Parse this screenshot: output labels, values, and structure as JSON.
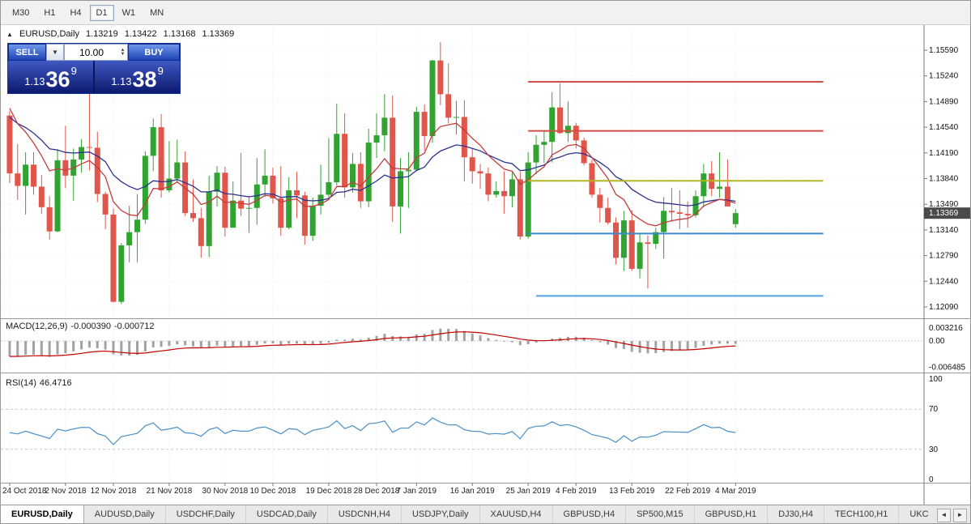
{
  "toolbar": {
    "timeframes": [
      {
        "label": "M30",
        "active": false
      },
      {
        "label": "H1",
        "active": false
      },
      {
        "label": "H4",
        "active": false
      },
      {
        "label": "D1",
        "active": true
      },
      {
        "label": "W1",
        "active": false
      },
      {
        "label": "MN",
        "active": false
      }
    ]
  },
  "icons": {
    "collapse": "▲",
    "dropdown": "▼",
    "spin_up": "▲",
    "spin_down": "▼",
    "tab_left": "◄",
    "tab_right": "►"
  },
  "chart_header": {
    "symbol": "EURUSD,Daily",
    "open": "1.13219",
    "high": "1.13422",
    "low": "1.13168",
    "close": "1.13369"
  },
  "trade_widget": {
    "sell_label": "SELL",
    "buy_label": "BUY",
    "volume": "10.00",
    "sell_price_prefix": "1.13",
    "sell_price_pips": "36",
    "sell_price_sup": "9",
    "buy_price_prefix": "1.13",
    "buy_price_pips": "38",
    "buy_price_sup": "9"
  },
  "chart_data": {
    "type": "candlestick",
    "symbol": "EURUSD",
    "timeframe": "Daily",
    "colors": {
      "bull": "#31a331",
      "bear": "#e0564a",
      "grid": "#ededed",
      "macd_hist": "#a3a3a3",
      "macd_signal": "#c40000",
      "rsi_line": "#4a8fc7",
      "axis_line": "#777777",
      "divider": "#9a9a9a",
      "price_tag_bg": "#4a4a4a"
    },
    "price_axis": {
      "labels": [
        "1.15590",
        "1.15240",
        "1.14890",
        "1.14540",
        "1.14190",
        "1.13840",
        "1.13490",
        "1.13140",
        "1.12790",
        "1.12440",
        "1.12090"
      ],
      "current_price": "1.13369"
    },
    "x_labels": [
      {
        "index": 0,
        "label": "24 Oct 2018"
      },
      {
        "index": 7,
        "label": "2 Nov 2018"
      },
      {
        "index": 13,
        "label": "12 Nov 2018"
      },
      {
        "index": 20,
        "label": "21 Nov 2018"
      },
      {
        "index": 27,
        "label": "30 Nov 2018"
      },
      {
        "index": 33,
        "label": "10 Dec 2018"
      },
      {
        "index": 40,
        "label": "19 Dec 2018"
      },
      {
        "index": 46,
        "label": "28 Dec 2018"
      },
      {
        "index": 51,
        "label": "7 Jan 2019"
      },
      {
        "index": 58,
        "label": "16 Jan 2019"
      },
      {
        "index": 65,
        "label": "25 Jan 2019"
      },
      {
        "index": 71,
        "label": "4 Feb 2019"
      },
      {
        "index": 78,
        "label": "13 Feb 2019"
      },
      {
        "index": 85,
        "label": "22 Feb 2019"
      },
      {
        "index": 91,
        "label": "4 Mar 2019"
      }
    ],
    "candles": [
      [
        "24 Oct 2018",
        1.147,
        1.1476,
        1.1378,
        1.1391
      ],
      [
        "25 Oct 2018",
        1.1391,
        1.1431,
        1.1355,
        1.1374
      ],
      [
        "26 Oct 2018",
        1.1374,
        1.142,
        1.1335,
        1.1403
      ],
      [
        "29 Oct 2018",
        1.1403,
        1.142,
        1.1362,
        1.1373
      ],
      [
        "30 Oct 2018",
        1.1373,
        1.1389,
        1.1336,
        1.1345
      ],
      [
        "31 Oct 2018",
        1.1345,
        1.136,
        1.1301,
        1.1312
      ],
      [
        "1 Nov 2018",
        1.1312,
        1.1424,
        1.1311,
        1.1409
      ],
      [
        "2 Nov 2018",
        1.1409,
        1.1456,
        1.1371,
        1.1388
      ],
      [
        "5 Nov 2018",
        1.1388,
        1.1425,
        1.1354,
        1.141
      ],
      [
        "6 Nov 2018",
        1.141,
        1.1438,
        1.1392,
        1.1427
      ],
      [
        "7 Nov 2018",
        1.1427,
        1.15,
        1.1395,
        1.1426
      ],
      [
        "8 Nov 2018",
        1.1426,
        1.1448,
        1.1352,
        1.1363
      ],
      [
        "9 Nov 2018",
        1.1363,
        1.1366,
        1.1315,
        1.1335
      ],
      [
        "12 Nov 2018",
        1.1335,
        1.1343,
        1.1215,
        1.1216
      ],
      [
        "13 Nov 2018",
        1.1216,
        1.1296,
        1.1213,
        1.1293
      ],
      [
        "14 Nov 2018",
        1.1293,
        1.1347,
        1.127,
        1.1311
      ],
      [
        "15 Nov 2018",
        1.1311,
        1.1363,
        1.127,
        1.1328
      ],
      [
        "16 Nov 2018",
        1.1328,
        1.1421,
        1.1322,
        1.1415
      ],
      [
        "19 Nov 2018",
        1.1415,
        1.1466,
        1.1394,
        1.1454
      ],
      [
        "20 Nov 2018",
        1.1454,
        1.1472,
        1.1358,
        1.1368
      ],
      [
        "21 Nov 2018",
        1.1368,
        1.1435,
        1.1365,
        1.1384
      ],
      [
        "22 Nov 2018",
        1.1384,
        1.1437,
        1.1378,
        1.1406
      ],
      [
        "23 Nov 2018",
        1.1406,
        1.1421,
        1.1333,
        1.1337
      ],
      [
        "26 Nov 2018",
        1.1337,
        1.1383,
        1.1325,
        1.133
      ],
      [
        "27 Nov 2018",
        1.133,
        1.1344,
        1.1276,
        1.1292
      ],
      [
        "28 Nov 2018",
        1.1292,
        1.1388,
        1.1277,
        1.1366
      ],
      [
        "29 Nov 2018",
        1.1366,
        1.1401,
        1.1346,
        1.1392
      ],
      [
        "30 Nov 2018",
        1.1392,
        1.14,
        1.1305,
        1.1317
      ],
      [
        "3 Dec 2018",
        1.1317,
        1.138,
        1.1317,
        1.1354
      ],
      [
        "4 Dec 2018",
        1.1354,
        1.1419,
        1.1333,
        1.1343
      ],
      [
        "5 Dec 2018",
        1.1343,
        1.136,
        1.131,
        1.1344
      ],
      [
        "6 Dec 2018",
        1.1344,
        1.1412,
        1.1321,
        1.1376
      ],
      [
        "7 Dec 2018",
        1.1376,
        1.1424,
        1.1359,
        1.1388
      ],
      [
        "10 Dec 2018",
        1.1388,
        1.1399,
        1.135,
        1.1357
      ],
      [
        "11 Dec 2018",
        1.1357,
        1.1401,
        1.1306,
        1.1317
      ],
      [
        "12 Dec 2018",
        1.1317,
        1.1386,
        1.1315,
        1.1368
      ],
      [
        "13 Dec 2018",
        1.1368,
        1.1393,
        1.133,
        1.1361
      ],
      [
        "14 Dec 2018",
        1.1361,
        1.1366,
        1.1294,
        1.1306
      ],
      [
        "17 Dec 2018",
        1.1306,
        1.1358,
        1.1299,
        1.1347
      ],
      [
        "18 Dec 2018",
        1.1347,
        1.1403,
        1.1335,
        1.1362
      ],
      [
        "19 Dec 2018",
        1.1362,
        1.1439,
        1.1355,
        1.1379
      ],
      [
        "20 Dec 2018",
        1.1379,
        1.1486,
        1.1375,
        1.1445
      ],
      [
        "21 Dec 2018",
        1.1445,
        1.1473,
        1.1358,
        1.1372
      ],
      [
        "24 Dec 2018",
        1.1372,
        1.1419,
        1.1365,
        1.1404
      ],
      [
        "26 Dec 2018",
        1.1404,
        1.142,
        1.1344,
        1.1353
      ],
      [
        "27 Dec 2018",
        1.1353,
        1.1452,
        1.1345,
        1.1433
      ],
      [
        "28 Dec 2018",
        1.1433,
        1.1473,
        1.1412,
        1.1443
      ],
      [
        "31 Dec 2018",
        1.1443,
        1.1499,
        1.1421,
        1.1467
      ],
      [
        "2 Jan 2019",
        1.1467,
        1.1497,
        1.1325,
        1.1346
      ],
      [
        "3 Jan 2019",
        1.1346,
        1.1412,
        1.1309,
        1.1394
      ],
      [
        "4 Jan 2019",
        1.1394,
        1.142,
        1.1344,
        1.1396
      ],
      [
        "7 Jan 2019",
        1.1396,
        1.1482,
        1.1396,
        1.1475
      ],
      [
        "8 Jan 2019",
        1.1475,
        1.1485,
        1.1422,
        1.1442
      ],
      [
        "9 Jan 2019",
        1.1442,
        1.1546,
        1.1433,
        1.1545
      ],
      [
        "10 Jan 2019",
        1.1545,
        1.157,
        1.1484,
        1.1499
      ],
      [
        "11 Jan 2019",
        1.1499,
        1.1541,
        1.1459,
        1.1467
      ],
      [
        "14 Jan 2019",
        1.1467,
        1.149,
        1.1444,
        1.1468
      ],
      [
        "15 Jan 2019",
        1.1468,
        1.1491,
        1.138,
        1.1413
      ],
      [
        "16 Jan 2019",
        1.1413,
        1.1425,
        1.1377,
        1.1394
      ],
      [
        "17 Jan 2019",
        1.1394,
        1.1404,
        1.137,
        1.1391
      ],
      [
        "18 Jan 2019",
        1.1391,
        1.1399,
        1.1353,
        1.1362
      ],
      [
        "21 Jan 2019",
        1.1362,
        1.138,
        1.1358,
        1.1367
      ],
      [
        "22 Jan 2019",
        1.1367,
        1.1394,
        1.1336,
        1.136
      ],
      [
        "23 Jan 2019",
        1.136,
        1.1394,
        1.1345,
        1.1383
      ],
      [
        "24 Jan 2019",
        1.1383,
        1.1393,
        1.1301,
        1.1305
      ],
      [
        "25 Jan 2019",
        1.1305,
        1.142,
        1.1302,
        1.1406
      ],
      [
        "28 Jan 2019",
        1.1406,
        1.1443,
        1.139,
        1.143
      ],
      [
        "29 Jan 2019",
        1.143,
        1.145,
        1.1405,
        1.1434
      ],
      [
        "30 Jan 2019",
        1.1434,
        1.1502,
        1.1406,
        1.1481
      ],
      [
        "31 Jan 2019",
        1.1481,
        1.1514,
        1.1445,
        1.1446
      ],
      [
        "1 Feb 2019",
        1.1446,
        1.1489,
        1.1434,
        1.1456
      ],
      [
        "4 Feb 2019",
        1.1456,
        1.146,
        1.1425,
        1.1436
      ],
      [
        "5 Feb 2019",
        1.1436,
        1.144,
        1.1402,
        1.1405
      ],
      [
        "6 Feb 2019",
        1.1405,
        1.141,
        1.1358,
        1.1362
      ],
      [
        "7 Feb 2019",
        1.1362,
        1.1371,
        1.1324,
        1.1344
      ],
      [
        "8 Feb 2019",
        1.1344,
        1.1358,
        1.1321,
        1.1324
      ],
      [
        "11 Feb 2019",
        1.1324,
        1.1331,
        1.1267,
        1.1276
      ],
      [
        "12 Feb 2019",
        1.1276,
        1.134,
        1.1258,
        1.1327
      ],
      [
        "13 Feb 2019",
        1.1327,
        1.1341,
        1.1258,
        1.1261
      ],
      [
        "14 Feb 2019",
        1.1261,
        1.131,
        1.1248,
        1.1297
      ],
      [
        "15 Feb 2019",
        1.1297,
        1.1307,
        1.1234,
        1.1295
      ],
      [
        "18 Feb 2019",
        1.1295,
        1.1317,
        1.1288,
        1.1311
      ],
      [
        "19 Feb 2019",
        1.1311,
        1.1359,
        1.1275,
        1.134
      ],
      [
        "20 Feb 2019",
        1.134,
        1.1371,
        1.1325,
        1.1338
      ],
      [
        "21 Feb 2019",
        1.1338,
        1.1368,
        1.1315,
        1.1336
      ],
      [
        "22 Feb 2019",
        1.1336,
        1.1353,
        1.1317,
        1.1334
      ],
      [
        "25 Feb 2019",
        1.1334,
        1.1368,
        1.1331,
        1.136
      ],
      [
        "26 Feb 2019",
        1.136,
        1.1404,
        1.1345,
        1.1391
      ],
      [
        "27 Feb 2019",
        1.1391,
        1.1408,
        1.136,
        1.137
      ],
      [
        "28 Feb 2019",
        1.137,
        1.142,
        1.1358,
        1.1373
      ],
      [
        "1 Mar 2019",
        1.1373,
        1.141,
        1.1352,
        1.1346
      ],
      [
        "4 Mar 2019",
        1.13219,
        1.13422,
        1.13168,
        1.13369
      ]
    ],
    "moving_averages": [
      {
        "name": "slow-ma-blue",
        "period": 20,
        "seed": 1.1476,
        "color": "#2b3190"
      },
      {
        "name": "fast-ma-red",
        "period": 9,
        "seed": 1.1502,
        "color": "#c43b3b"
      }
    ],
    "hlines": [
      {
        "price": 1.1516,
        "color": "#d14f44",
        "from": 65,
        "to": 102
      },
      {
        "price": 1.1449,
        "color": "#d14f44",
        "from": 65,
        "to": 102
      },
      {
        "price": 1.1381,
        "color": "#b5b520",
        "from": 65,
        "to": 102
      },
      {
        "price": 1.1309,
        "color": "#3d8bca",
        "from": 65,
        "to": 102
      },
      {
        "price": 1.1224,
        "color": "#52a5e5",
        "from": 66,
        "to": 102
      }
    ],
    "macd": {
      "label": "MACD(12,26,9)",
      "value_main": "-0.000390",
      "value_signal": "-0.000712",
      "axis_max": "0.003216",
      "axis_zero": "0.00",
      "axis_min": "-0.006485",
      "seed_fast": 1.1405,
      "seed_slow": 1.1445
    },
    "rsi": {
      "label": "RSI(14)",
      "value": "46.4716",
      "levels": [
        30,
        70
      ],
      "axis": [
        "100",
        "70",
        "30",
        "0"
      ]
    }
  },
  "tabs": {
    "items": [
      {
        "label": "EURUSD,Daily",
        "active": true
      },
      {
        "label": "AUDUSD,Daily",
        "active": false
      },
      {
        "label": "USDCHF,Daily",
        "active": false
      },
      {
        "label": "USDCAD,Daily",
        "active": false
      },
      {
        "label": "USDCNH,H4",
        "active": false
      },
      {
        "label": "USDJPY,Daily",
        "active": false
      },
      {
        "label": "XAUUSD,H4",
        "active": false
      },
      {
        "label": "GBPUSD,H4",
        "active": false
      },
      {
        "label": "SP500,M15",
        "active": false
      },
      {
        "label": "GBPUSD,H1",
        "active": false
      },
      {
        "label": "DJ30,H4",
        "active": false
      },
      {
        "label": "TECH100,H1",
        "active": false
      },
      {
        "label": "UKC",
        "active": false
      }
    ],
    "scroll_left_icon": "◄",
    "scroll_right_icon": "►"
  }
}
